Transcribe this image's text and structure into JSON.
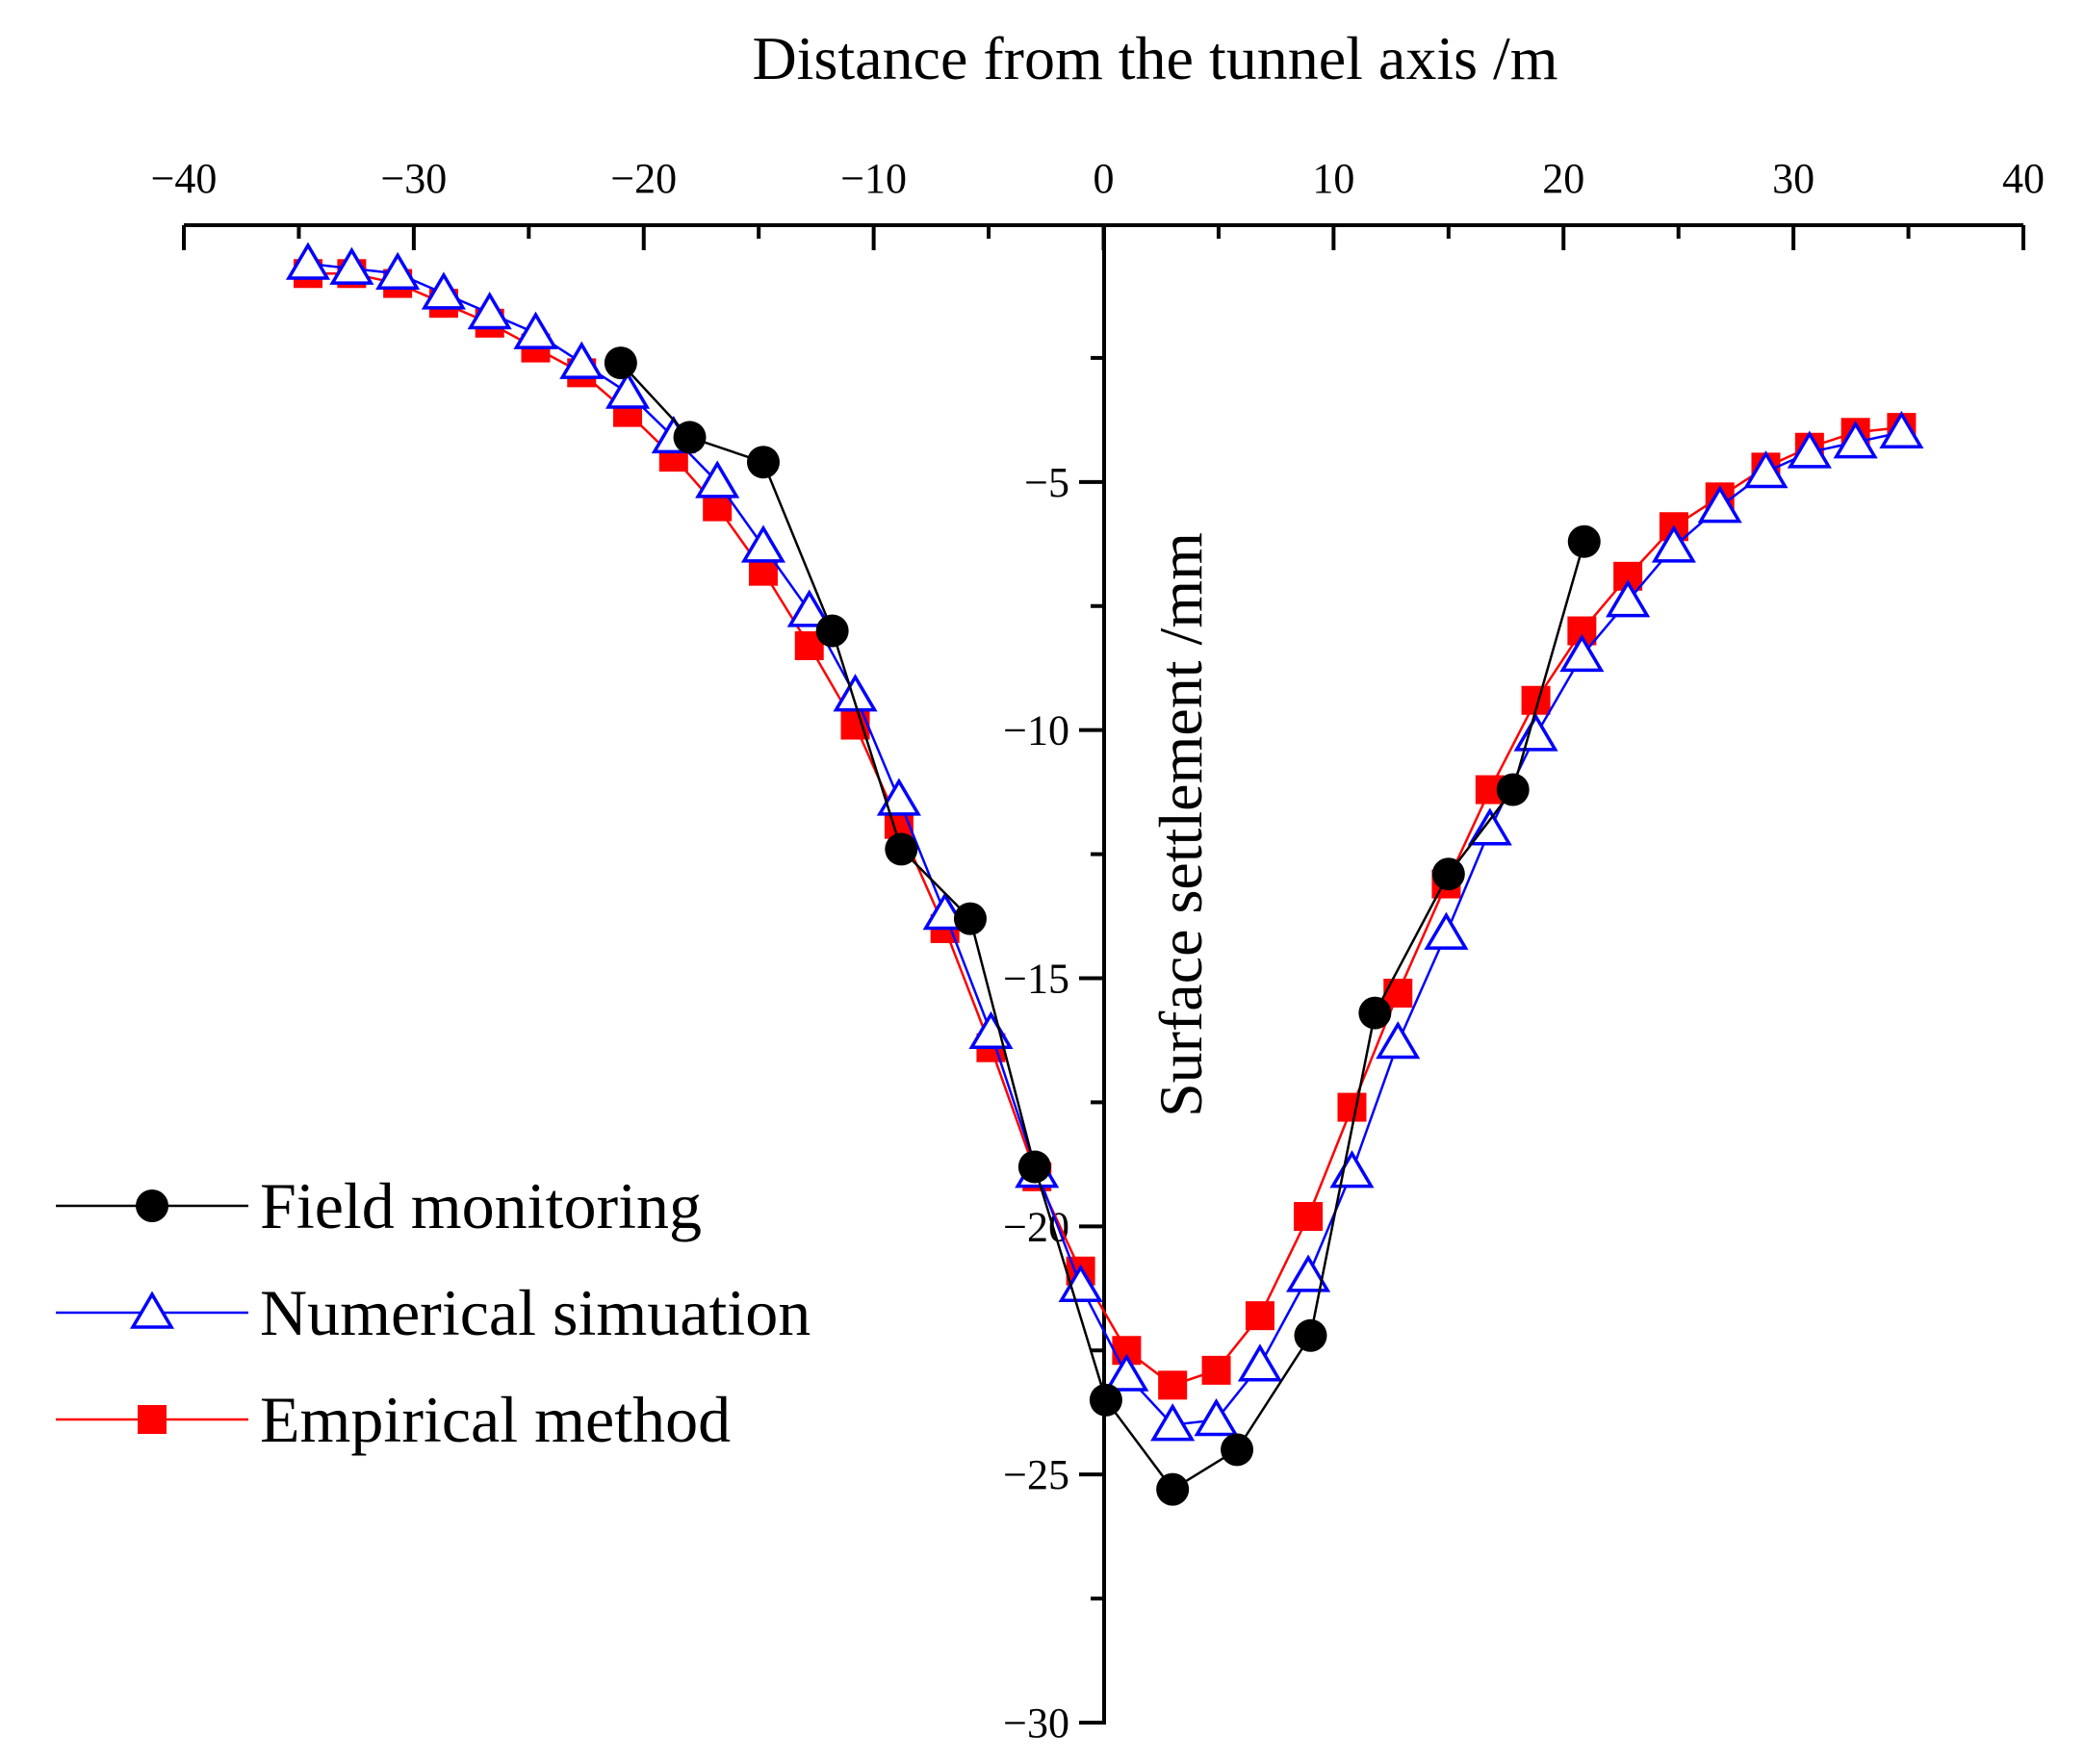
{
  "chart_data": {
    "type": "line",
    "xlabel": "Distance from the tunnel axis /m",
    "ylabel": "Surface settlement /mm",
    "xlim": [
      -40,
      40
    ],
    "ylim": [
      -30,
      0
    ],
    "xticks": [
      -40,
      -30,
      -20,
      -10,
      0,
      10,
      20,
      30,
      40
    ],
    "xtick_labels": [
      "−40",
      "−30",
      "−20",
      "−10",
      "0",
      "10",
      "20",
      "30",
      "40"
    ],
    "yticks": [
      -5,
      -10,
      -15,
      -20,
      -25,
      -30
    ],
    "ytick_labels": [
      "−5",
      "−10",
      "−15",
      "−20",
      "−25",
      "−30"
    ],
    "legend_position": "left",
    "series": [
      {
        "name": "Field monitoring",
        "color": "#000000",
        "marker": "circle",
        "x": [
          -21,
          -18,
          -14.8,
          -11.8,
          -8.8,
          -5.8,
          -3,
          0.1,
          3,
          5.8,
          9,
          11.8,
          15,
          17.8,
          20.9
        ],
        "y": [
          -2.6,
          -4.1,
          -4.6,
          -8,
          -12.4,
          -13.8,
          -18.8,
          -23.5,
          -25.3,
          -24.5,
          -22.2,
          -15.7,
          -12.9,
          -11.2,
          -6.2
        ]
      },
      {
        "name": "Numerical simuation",
        "color": "#0000ff",
        "marker": "triangle",
        "x": [
          -34.6,
          -32.7,
          -30.7,
          -28.7,
          -26.7,
          -24.7,
          -22.7,
          -20.7,
          -18.7,
          -16.8,
          -14.8,
          -12.8,
          -10.8,
          -8.9,
          -6.9,
          -4.9,
          -2.9,
          -1,
          1,
          3,
          4.9,
          6.8,
          8.9,
          10.8,
          12.8,
          14.9,
          16.8,
          18.8,
          20.8,
          22.8,
          24.8,
          26.8,
          28.8,
          30.7,
          32.7,
          34.7
        ],
        "y": [
          -0.6,
          -0.7,
          -0.8,
          -1.2,
          -1.6,
          -2,
          -2.6,
          -3.2,
          -4.1,
          -5,
          -6.3,
          -7.6,
          -9.3,
          -11.4,
          -13.7,
          -16.1,
          -18.9,
          -21.2,
          -23,
          -24,
          -23.9,
          -22.8,
          -21,
          -18.9,
          -16.3,
          -14.1,
          -12,
          -10.1,
          -8.5,
          -7.4,
          -6.3,
          -5.5,
          -4.8,
          -4.4,
          -4.2,
          -4
        ]
      },
      {
        "name": "Empirical method",
        "color": "#ff0000",
        "marker": "square",
        "x": [
          -34.6,
          -32.7,
          -30.7,
          -28.7,
          -26.7,
          -24.7,
          -22.7,
          -20.7,
          -18.7,
          -16.8,
          -14.8,
          -12.8,
          -10.8,
          -8.9,
          -6.9,
          -4.9,
          -2.9,
          -1,
          1,
          3,
          4.9,
          6.8,
          8.9,
          10.8,
          12.8,
          14.9,
          16.8,
          18.8,
          20.8,
          22.8,
          24.8,
          26.8,
          28.8,
          30.7,
          32.7,
          34.7
        ],
        "y": [
          -0.8,
          -0.8,
          -1,
          -1.4,
          -1.8,
          -2.3,
          -2.8,
          -3.6,
          -4.5,
          -5.5,
          -6.8,
          -8.3,
          -9.9,
          -11.9,
          -14,
          -16.4,
          -19,
          -20.9,
          -22.5,
          -23.2,
          -22.9,
          -21.8,
          -19.8,
          -17.6,
          -15.3,
          -13.1,
          -11.2,
          -9.4,
          -8,
          -6.9,
          -5.9,
          -5.3,
          -4.7,
          -4.3,
          -4,
          -3.9
        ]
      }
    ]
  }
}
